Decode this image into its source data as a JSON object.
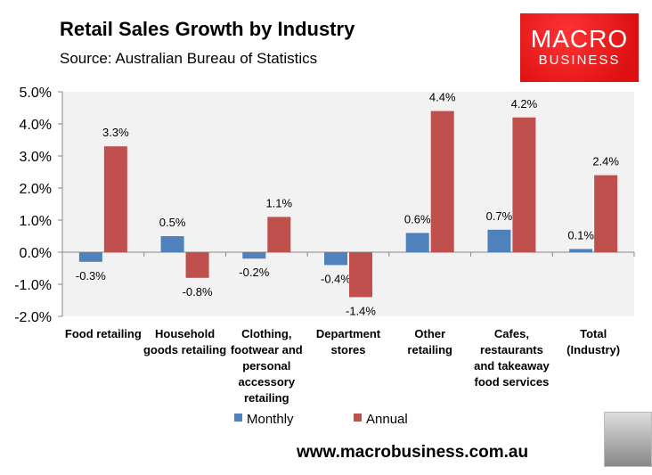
{
  "header": {
    "title": "Retail Sales Growth by Industry",
    "subtitle": "Source: Australian Bureau of Statistics"
  },
  "logo": {
    "line1": "MACRO",
    "line2": "BUSINESS"
  },
  "footer": {
    "url": "www.macrobusiness.com.au"
  },
  "chart_data": {
    "type": "bar",
    "title": "Retail Sales Growth by Industry",
    "categories": [
      [
        "Food retailing"
      ],
      [
        "Household",
        "goods retailing"
      ],
      [
        "Clothing,",
        "footwear and",
        "personal",
        "accessory",
        "retailing"
      ],
      [
        "Department",
        "stores"
      ],
      [
        "Other",
        "retailing"
      ],
      [
        "Cafes,",
        "restaurants",
        "and takeaway",
        "food services"
      ],
      [
        "Total",
        "(Industry)"
      ]
    ],
    "series": [
      {
        "name": "Monthly",
        "color": "#4f81bd",
        "values": [
          -0.3,
          0.5,
          -0.2,
          -0.4,
          0.6,
          0.7,
          0.1
        ],
        "labels": [
          "-0.3%",
          "0.5%",
          "-0.2%",
          "-0.4%",
          "0.6%",
          "0.7%",
          "0.1%"
        ]
      },
      {
        "name": "Annual",
        "color": "#c0504d",
        "values": [
          3.3,
          -0.8,
          1.1,
          -1.4,
          4.4,
          4.2,
          2.4
        ],
        "labels": [
          "3.3%",
          "-0.8%",
          "1.1%",
          "-1.4%",
          "4.4%",
          "4.2%",
          "2.4%"
        ]
      }
    ],
    "ylim": [
      -2,
      5
    ],
    "yticks": [
      "-2.0%",
      "-1.0%",
      "0.0%",
      "1.0%",
      "2.0%",
      "3.0%",
      "4.0%",
      "5.0%"
    ],
    "grid": false,
    "legend": "bottom",
    "plot_background": "#f2f2f2"
  }
}
